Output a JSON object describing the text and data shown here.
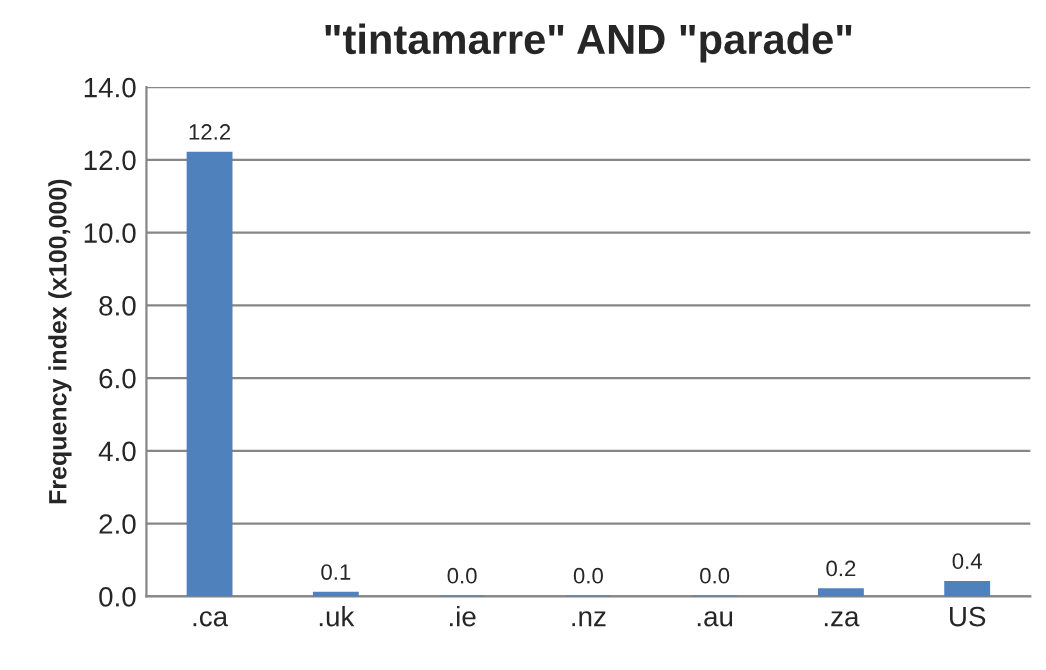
{
  "chart_data": {
    "type": "bar",
    "title": "\"tintamarre\" AND \"parade\"",
    "ylabel": "Frequency index (x100,000)",
    "categories": [
      ".ca",
      ".uk",
      ".ie",
      ".nz",
      ".au",
      ".za",
      "US"
    ],
    "values": [
      12.2,
      0.1,
      0.0,
      0.0,
      0.0,
      0.2,
      0.4
    ],
    "value_labels": [
      "12.2",
      "0.1",
      "0.0",
      "0.0",
      "0.0",
      "0.2",
      "0.4"
    ],
    "color": "#4f81bd",
    "ylim": [
      0,
      14
    ],
    "yticks": [
      {
        "value": 0,
        "label": "0.0"
      },
      {
        "value": 2,
        "label": "2.0"
      },
      {
        "value": 4,
        "label": "4.0"
      },
      {
        "value": 6,
        "label": "6.0"
      },
      {
        "value": 8,
        "label": "8.0"
      },
      {
        "value": 10,
        "label": "10.0"
      },
      {
        "value": 12,
        "label": "12.0"
      },
      {
        "value": 14,
        "label": "14.0"
      }
    ],
    "grid": "y",
    "legend": false
  }
}
